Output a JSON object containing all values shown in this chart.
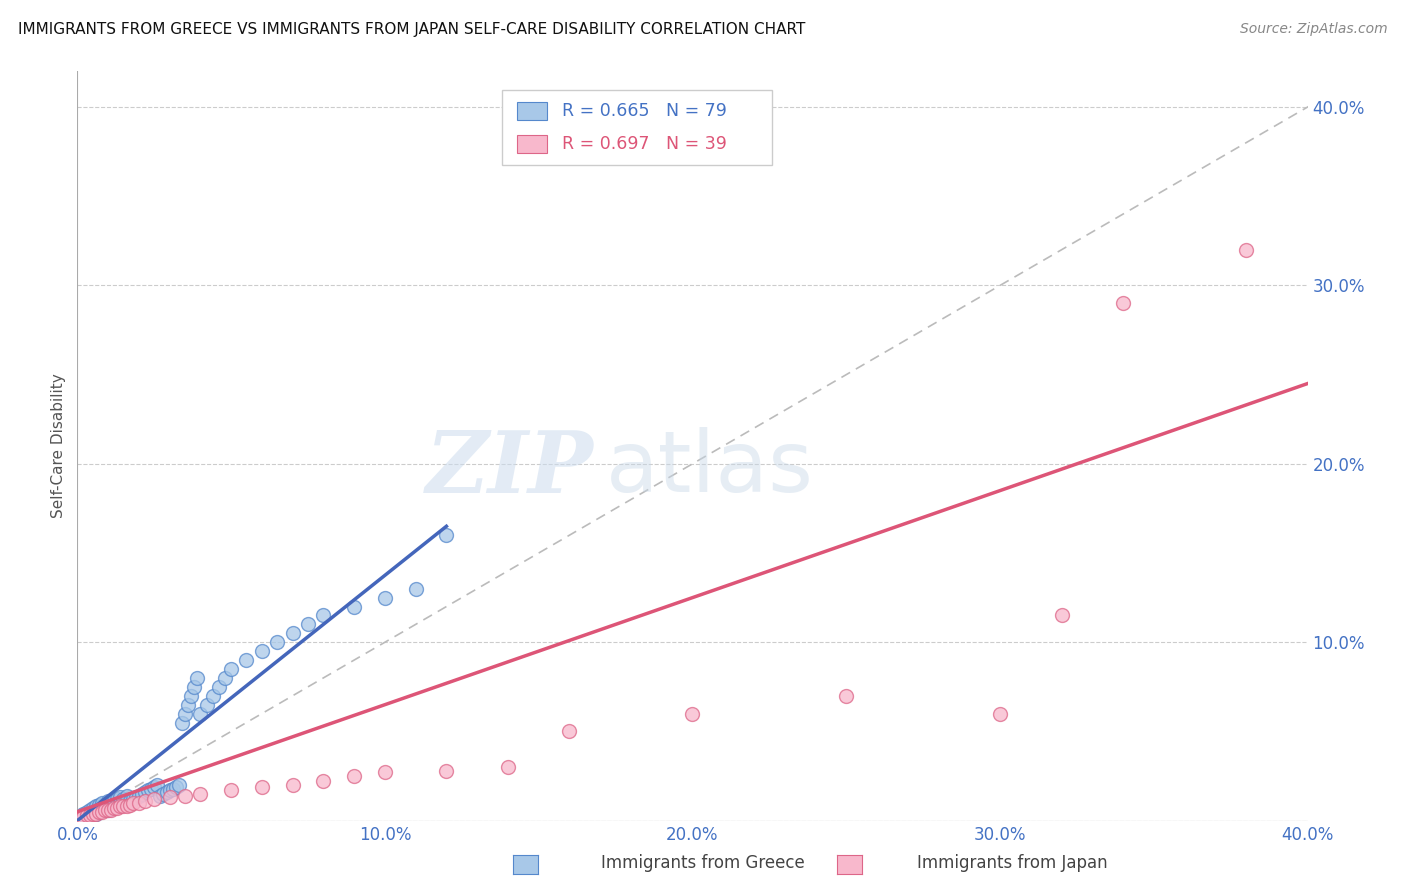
{
  "title": "IMMIGRANTS FROM GREECE VS IMMIGRANTS FROM JAPAN SELF-CARE DISABILITY CORRELATION CHART",
  "source": "Source: ZipAtlas.com",
  "ylabel": "Self-Care Disability",
  "xlim": [
    0.0,
    0.4
  ],
  "ylim": [
    0.0,
    0.42
  ],
  "xticks": [
    0.0,
    0.1,
    0.2,
    0.3,
    0.4
  ],
  "yticks": [
    0.0,
    0.1,
    0.2,
    0.3,
    0.4
  ],
  "xticklabels": [
    "0.0%",
    "10.0%",
    "20.0%",
    "30.0%",
    "40.0%"
  ],
  "yticklabels": [
    "",
    "10.0%",
    "20.0%",
    "30.0%",
    "40.0%"
  ],
  "greece_color": "#a8c8e8",
  "greece_edge": "#5588cc",
  "japan_color": "#f8b8cc",
  "japan_edge": "#dd6688",
  "greece_R": 0.665,
  "greece_N": 79,
  "japan_R": 0.697,
  "japan_N": 39,
  "trendline_greece": "#4466bb",
  "trendline_japan": "#dd5577",
  "diagonal_color": "#bbbbbb",
  "watermark_zip": "ZIP",
  "watermark_atlas": "atlas",
  "legend_label_greece": "Immigrants from Greece",
  "legend_label_japan": "Immigrants from Japan",
  "greece_x": [
    0.001,
    0.001,
    0.002,
    0.002,
    0.002,
    0.003,
    0.003,
    0.003,
    0.004,
    0.004,
    0.004,
    0.005,
    0.005,
    0.005,
    0.006,
    0.006,
    0.006,
    0.007,
    0.007,
    0.007,
    0.008,
    0.008,
    0.008,
    0.009,
    0.009,
    0.01,
    0.01,
    0.01,
    0.011,
    0.011,
    0.012,
    0.012,
    0.013,
    0.013,
    0.014,
    0.014,
    0.015,
    0.015,
    0.016,
    0.016,
    0.017,
    0.018,
    0.019,
    0.02,
    0.021,
    0.022,
    0.023,
    0.024,
    0.025,
    0.026,
    0.027,
    0.028,
    0.029,
    0.03,
    0.031,
    0.032,
    0.033,
    0.034,
    0.035,
    0.036,
    0.037,
    0.038,
    0.039,
    0.04,
    0.042,
    0.044,
    0.046,
    0.048,
    0.05,
    0.055,
    0.06,
    0.065,
    0.07,
    0.075,
    0.08,
    0.09,
    0.1,
    0.11,
    0.12
  ],
  "greece_y": [
    0.001,
    0.002,
    0.001,
    0.003,
    0.004,
    0.002,
    0.003,
    0.005,
    0.002,
    0.004,
    0.006,
    0.003,
    0.005,
    0.007,
    0.004,
    0.006,
    0.008,
    0.005,
    0.007,
    0.009,
    0.006,
    0.008,
    0.01,
    0.007,
    0.009,
    0.006,
    0.008,
    0.011,
    0.007,
    0.01,
    0.008,
    0.011,
    0.009,
    0.012,
    0.01,
    0.013,
    0.009,
    0.012,
    0.01,
    0.014,
    0.011,
    0.012,
    0.013,
    0.014,
    0.015,
    0.016,
    0.017,
    0.018,
    0.019,
    0.02,
    0.014,
    0.015,
    0.016,
    0.017,
    0.018,
    0.019,
    0.02,
    0.055,
    0.06,
    0.065,
    0.07,
    0.075,
    0.08,
    0.06,
    0.065,
    0.07,
    0.075,
    0.08,
    0.085,
    0.09,
    0.095,
    0.1,
    0.105,
    0.11,
    0.115,
    0.12,
    0.125,
    0.13,
    0.16
  ],
  "japan_x": [
    0.001,
    0.002,
    0.003,
    0.004,
    0.005,
    0.006,
    0.007,
    0.008,
    0.009,
    0.01,
    0.011,
    0.012,
    0.013,
    0.014,
    0.015,
    0.016,
    0.017,
    0.018,
    0.02,
    0.022,
    0.025,
    0.03,
    0.035,
    0.04,
    0.05,
    0.06,
    0.07,
    0.08,
    0.09,
    0.1,
    0.12,
    0.14,
    0.16,
    0.2,
    0.25,
    0.3,
    0.32,
    0.34,
    0.38
  ],
  "japan_y": [
    0.001,
    0.002,
    0.003,
    0.003,
    0.004,
    0.004,
    0.005,
    0.005,
    0.006,
    0.006,
    0.006,
    0.007,
    0.007,
    0.008,
    0.008,
    0.008,
    0.009,
    0.01,
    0.01,
    0.011,
    0.012,
    0.013,
    0.014,
    0.015,
    0.017,
    0.019,
    0.02,
    0.022,
    0.025,
    0.027,
    0.028,
    0.03,
    0.05,
    0.06,
    0.07,
    0.06,
    0.115,
    0.29,
    0.32
  ],
  "greece_trend_x": [
    0.0,
    0.12
  ],
  "greece_trend_y": [
    0.0,
    0.165
  ],
  "japan_trend_x": [
    0.0,
    0.4
  ],
  "japan_trend_y": [
    0.005,
    0.245
  ]
}
